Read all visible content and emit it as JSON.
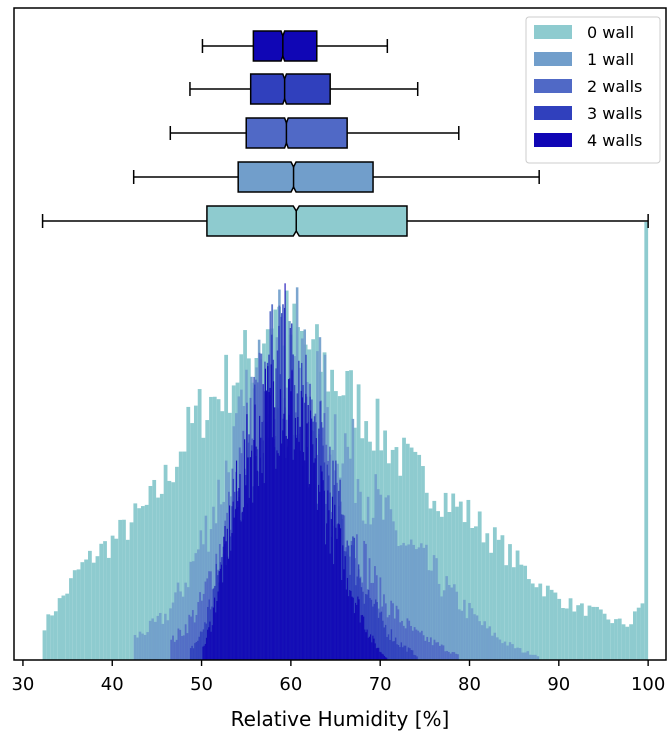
{
  "chart_data": {
    "type": "histogram+boxplot",
    "xlabel": "Relative Humidity [%]",
    "ylabel": "",
    "xlim": [
      29,
      102
    ],
    "xticks": [
      30,
      40,
      50,
      60,
      70,
      80,
      90,
      100
    ],
    "yaxis_visible": false,
    "grid": false,
    "legend_position": "top-right",
    "series": [
      {
        "name": "0 wall",
        "color": "#8ecbcf",
        "box": {
          "whislo": 32.2,
          "q1": 50.6,
          "med": 60.6,
          "q3": 73.0,
          "whishi": 100.0
        },
        "hist": {
          "anchors": [
            [
              32.2,
              0.07
            ],
            [
              33,
              0.1
            ],
            [
              34,
              0.13
            ],
            [
              35,
              0.16
            ],
            [
              36,
              0.2
            ],
            [
              38,
              0.24
            ],
            [
              40,
              0.27
            ],
            [
              42,
              0.31
            ],
            [
              44,
              0.35
            ],
            [
              46,
              0.41
            ],
            [
              48,
              0.5
            ],
            [
              50,
              0.57
            ],
            [
              52,
              0.61
            ],
            [
              54,
              0.66
            ],
            [
              56,
              0.7
            ],
            [
              58,
              0.8
            ],
            [
              60,
              0.75
            ],
            [
              62,
              0.71
            ],
            [
              64,
              0.66
            ],
            [
              66,
              0.62
            ],
            [
              68,
              0.57
            ],
            [
              70,
              0.52
            ],
            [
              72,
              0.47
            ],
            [
              74,
              0.43
            ],
            [
              76,
              0.39
            ],
            [
              78,
              0.36
            ],
            [
              80,
              0.33
            ],
            [
              82,
              0.29
            ],
            [
              84,
              0.25
            ],
            [
              86,
              0.21
            ],
            [
              88,
              0.17
            ],
            [
              90,
              0.14
            ],
            [
              92,
              0.12
            ],
            [
              94,
              0.11
            ],
            [
              96,
              0.09
            ],
            [
              98,
              0.08
            ],
            [
              99.5,
              0.14
            ]
          ],
          "spike": {
            "x": 99.8,
            "height": 1.0
          },
          "noise": 0.06
        }
      },
      {
        "name": "1 wall",
        "color": "#719ecb",
        "box": {
          "whislo": 42.4,
          "q1": 54.1,
          "med": 60.3,
          "q3": 69.2,
          "whishi": 87.8
        },
        "hist": {
          "anchors": [
            [
              42.4,
              0.05
            ],
            [
              44,
              0.07
            ],
            [
              46,
              0.1
            ],
            [
              48,
              0.17
            ],
            [
              50,
              0.27
            ],
            [
              52,
              0.38
            ],
            [
              54,
              0.5
            ],
            [
              56,
              0.6
            ],
            [
              58,
              0.7
            ],
            [
              60,
              0.72
            ],
            [
              62,
              0.66
            ],
            [
              64,
              0.58
            ],
            [
              66,
              0.49
            ],
            [
              68,
              0.41
            ],
            [
              70,
              0.34
            ],
            [
              72,
              0.28
            ],
            [
              74,
              0.24
            ],
            [
              76,
              0.2
            ],
            [
              78,
              0.15
            ],
            [
              80,
              0.11
            ],
            [
              82,
              0.07
            ],
            [
              84,
              0.04
            ],
            [
              86,
              0.02
            ],
            [
              87.8,
              0.01
            ]
          ],
          "noise": 0.1
        }
      },
      {
        "name": "2 walls",
        "color": "#5069c6",
        "box": {
          "whislo": 46.5,
          "q1": 55.0,
          "med": 59.5,
          "q3": 66.3,
          "whishi": 78.8
        },
        "hist": {
          "anchors": [
            [
              46.5,
              0.04
            ],
            [
              48,
              0.07
            ],
            [
              50,
              0.13
            ],
            [
              52,
              0.25
            ],
            [
              54,
              0.4
            ],
            [
              56,
              0.55
            ],
            [
              58,
              0.66
            ],
            [
              60,
              0.65
            ],
            [
              62,
              0.55
            ],
            [
              64,
              0.44
            ],
            [
              66,
              0.33
            ],
            [
              68,
              0.24
            ],
            [
              70,
              0.15
            ],
            [
              72,
              0.1
            ],
            [
              74,
              0.06
            ],
            [
              76,
              0.04
            ],
            [
              78.8,
              0.01
            ]
          ],
          "noise": 0.12
        }
      },
      {
        "name": "3 walls",
        "color": "#3040bd",
        "box": {
          "whislo": 48.7,
          "q1": 55.5,
          "med": 59.3,
          "q3": 64.4,
          "whishi": 74.2
        },
        "hist": {
          "anchors": [
            [
              48.7,
              0.02
            ],
            [
              50,
              0.06
            ],
            [
              52,
              0.2
            ],
            [
              54,
              0.38
            ],
            [
              56,
              0.53
            ],
            [
              58,
              0.62
            ],
            [
              60,
              0.63
            ],
            [
              62,
              0.54
            ],
            [
              64,
              0.42
            ],
            [
              66,
              0.3
            ],
            [
              68,
              0.18
            ],
            [
              70,
              0.09
            ],
            [
              72,
              0.04
            ],
            [
              74.2,
              0.01
            ]
          ],
          "noise": 0.13
        }
      },
      {
        "name": "4 walls",
        "color": "#1006b5",
        "box": {
          "whislo": 50.1,
          "q1": 55.8,
          "med": 59.1,
          "q3": 62.9,
          "whishi": 70.8
        },
        "hist": {
          "anchors": [
            [
              50.1,
              0.02
            ],
            [
              51,
              0.08
            ],
            [
              52,
              0.18
            ],
            [
              53,
              0.28
            ],
            [
              54,
              0.37
            ],
            [
              55,
              0.44
            ],
            [
              56,
              0.5
            ],
            [
              57,
              0.54
            ],
            [
              58,
              0.58
            ],
            [
              59,
              0.62
            ],
            [
              60,
              0.56
            ],
            [
              61,
              0.52
            ],
            [
              62,
              0.47
            ],
            [
              63,
              0.41
            ],
            [
              64,
              0.35
            ],
            [
              65,
              0.28
            ],
            [
              66,
              0.22
            ],
            [
              67,
              0.15
            ],
            [
              68,
              0.1
            ],
            [
              69,
              0.05
            ],
            [
              70,
              0.02
            ],
            [
              70.8,
              0.005
            ]
          ],
          "spike": {
            "x": 59.4,
            "height": 0.86
          },
          "noise": 0.12
        }
      }
    ]
  }
}
